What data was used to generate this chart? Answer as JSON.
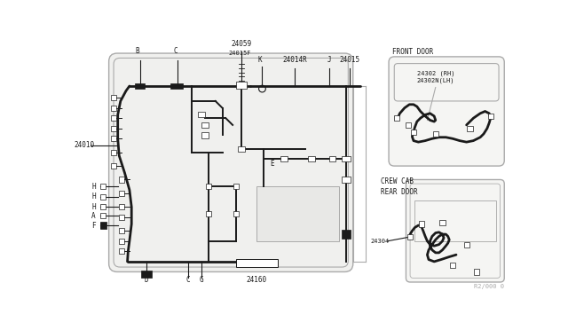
{
  "bg_color": "#ffffff",
  "line_color": "#1a1a1a",
  "gray_color": "#aaaaaa",
  "ref_code": "R2/000 0",
  "front_door_label": "FRONT DOOR",
  "front_door_parts": "24302 (RH)\n24302N(LH)",
  "crew_cab_label": "CREW CAB\nREAR DOOR",
  "crew_cab_parts": "24304",
  "label_fs": 5.5,
  "small_fs": 5.0
}
